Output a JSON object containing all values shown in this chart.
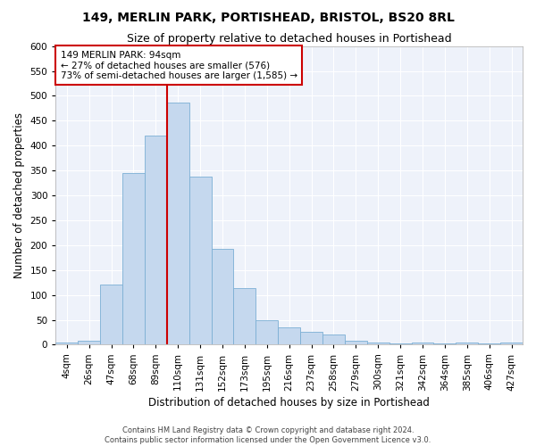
{
  "title": "149, MERLIN PARK, PORTISHEAD, BRISTOL, BS20 8RL",
  "subtitle": "Size of property relative to detached houses in Portishead",
  "xlabel": "Distribution of detached houses by size in Portishead",
  "ylabel": "Number of detached properties",
  "bar_color": "#c5d8ee",
  "bar_edge_color": "#7bafd4",
  "categories": [
    "4sqm",
    "26sqm",
    "47sqm",
    "68sqm",
    "89sqm",
    "110sqm",
    "131sqm",
    "152sqm",
    "173sqm",
    "195sqm",
    "216sqm",
    "237sqm",
    "258sqm",
    "279sqm",
    "300sqm",
    "321sqm",
    "342sqm",
    "364sqm",
    "385sqm",
    "406sqm",
    "427sqm"
  ],
  "values": [
    5,
    8,
    120,
    345,
    420,
    487,
    338,
    193,
    113,
    50,
    35,
    25,
    20,
    8,
    5,
    3,
    4,
    3,
    5,
    3,
    4
  ],
  "vline_index": 4,
  "vline_color": "#cc0000",
  "annotation_line1": "149 MERLIN PARK: 94sqm",
  "annotation_line2": "← 27% of detached houses are smaller (576)",
  "annotation_line3": "73% of semi-detached houses are larger (1,585) →",
  "annotation_box_color": "#ffffff",
  "annotation_box_edge": "#cc0000",
  "ylim": [
    0,
    600
  ],
  "yticks": [
    0,
    50,
    100,
    150,
    200,
    250,
    300,
    350,
    400,
    450,
    500,
    550,
    600
  ],
  "background_color": "#eef2fa",
  "grid_color": "#ffffff",
  "footer1": "Contains HM Land Registry data © Crown copyright and database right 2024.",
  "footer2": "Contains public sector information licensed under the Open Government Licence v3.0.",
  "title_fontsize": 10,
  "subtitle_fontsize": 9,
  "xlabel_fontsize": 8.5,
  "ylabel_fontsize": 8.5,
  "tick_fontsize": 7.5,
  "annotation_fontsize": 7.5,
  "footer_fontsize": 6
}
